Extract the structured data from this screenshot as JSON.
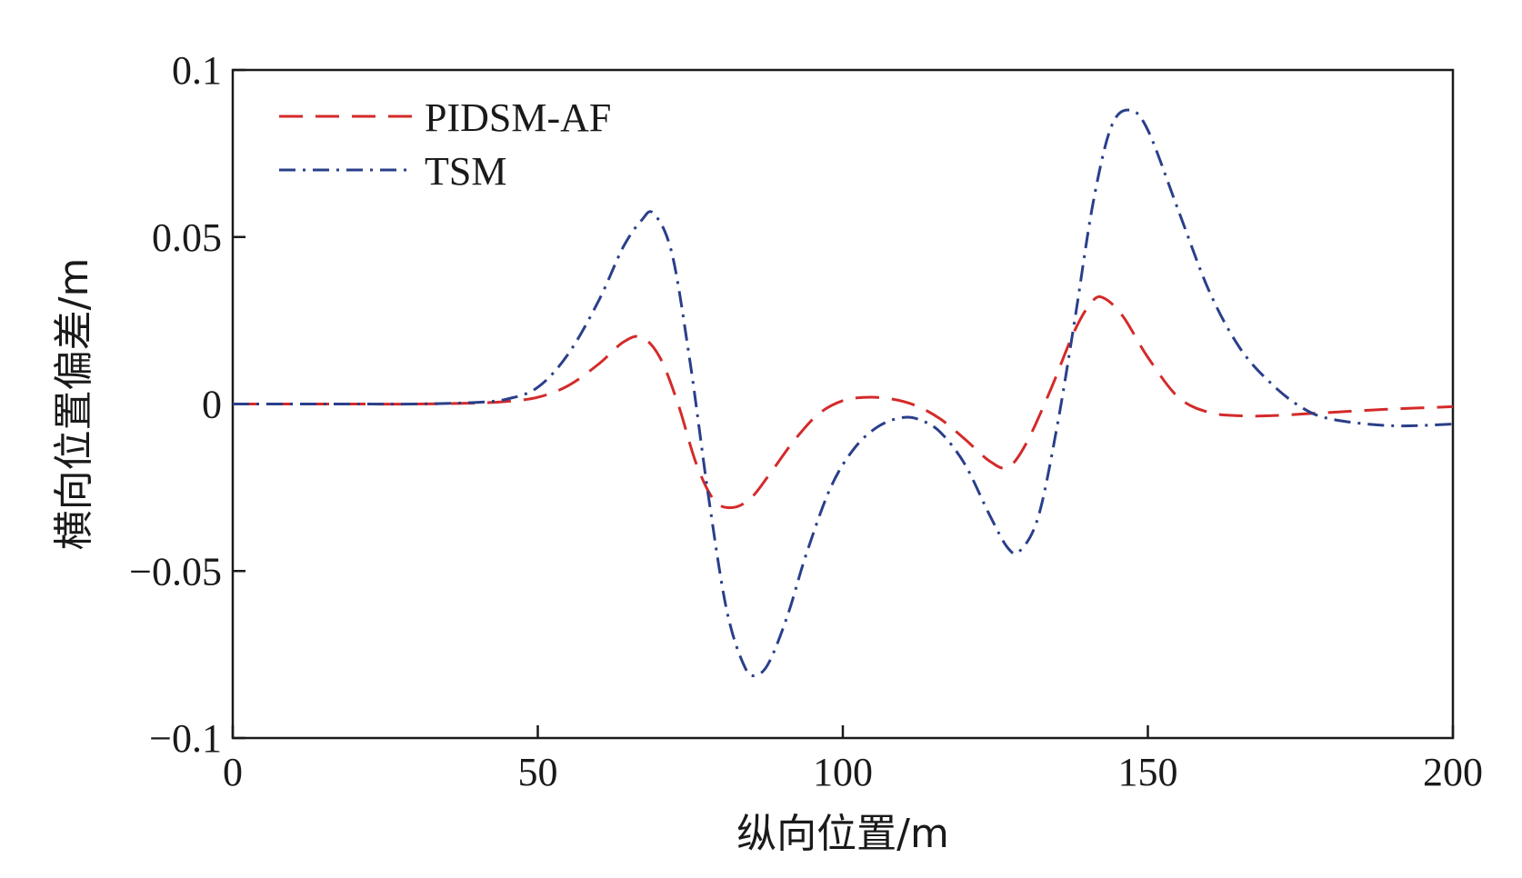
{
  "chart_data": {
    "type": "line",
    "title": "",
    "xlabel": "纵向位置/m",
    "ylabel": "横向位置偏差/m",
    "xlim": [
      0,
      200
    ],
    "ylim": [
      -0.1,
      0.1
    ],
    "x_ticks": [
      0,
      50,
      100,
      150,
      200
    ],
    "x_tick_labels": [
      "0",
      "50",
      "100",
      "150",
      "200"
    ],
    "y_ticks": [
      0.1,
      0.05,
      0,
      -0.05,
      -0.1
    ],
    "y_tick_labels": [
      "0.1",
      "0.05",
      "0",
      "−0.05",
      "−0.1"
    ],
    "grid": false,
    "legend_position": "top-left",
    "series": [
      {
        "name": "PIDSM-AF",
        "color": "#d42a2a",
        "style": "dashed",
        "x": [
          0,
          10,
          20,
          30,
          40,
          45,
          50,
          55,
          60,
          64,
          67,
          70,
          73,
          76,
          79,
          82,
          85,
          88,
          92,
          96,
          100,
          104,
          108,
          112,
          116,
          120,
          124,
          127,
          130,
          134,
          138,
          141,
          143,
          146,
          150,
          155,
          160,
          165,
          170,
          180,
          190,
          200
        ],
        "y": [
          0,
          0,
          0,
          0,
          0.0003,
          0.0008,
          0.002,
          0.0055,
          0.012,
          0.0185,
          0.02,
          0.014,
          0.0,
          -0.018,
          -0.029,
          -0.031,
          -0.028,
          -0.021,
          -0.011,
          -0.003,
          0.001,
          0.002,
          0.0015,
          -0.0005,
          -0.0045,
          -0.0105,
          -0.017,
          -0.019,
          -0.012,
          0.004,
          0.022,
          0.031,
          0.0315,
          0.026,
          0.014,
          0.002,
          -0.0025,
          -0.0035,
          -0.0035,
          -0.0025,
          -0.0015,
          -0.0008
        ]
      },
      {
        "name": "TSM",
        "color": "#2a3f8a",
        "style": "dash-dot",
        "x": [
          0,
          10,
          20,
          30,
          40,
          45,
          50,
          55,
          60,
          64,
          67,
          69,
          72,
          75,
          78,
          81,
          84,
          86,
          88,
          91,
          94,
          98,
          102,
          106,
          110,
          113,
          116,
          120,
          124,
          127,
          129,
          132,
          135,
          138,
          141,
          144,
          147,
          150,
          155,
          160,
          165,
          170,
          175,
          180,
          190,
          200
        ],
        "y": [
          0,
          0,
          0,
          0,
          0.0005,
          0.0015,
          0.005,
          0.015,
          0.031,
          0.047,
          0.055,
          0.057,
          0.045,
          0.012,
          -0.028,
          -0.062,
          -0.079,
          -0.081,
          -0.077,
          -0.063,
          -0.045,
          -0.025,
          -0.013,
          -0.0065,
          -0.004,
          -0.005,
          -0.0085,
          -0.018,
          -0.033,
          -0.043,
          -0.044,
          -0.034,
          -0.008,
          0.025,
          0.06,
          0.083,
          0.088,
          0.082,
          0.058,
          0.034,
          0.017,
          0.0065,
          -0.0008,
          -0.0045,
          -0.0065,
          -0.006
        ]
      }
    ]
  }
}
